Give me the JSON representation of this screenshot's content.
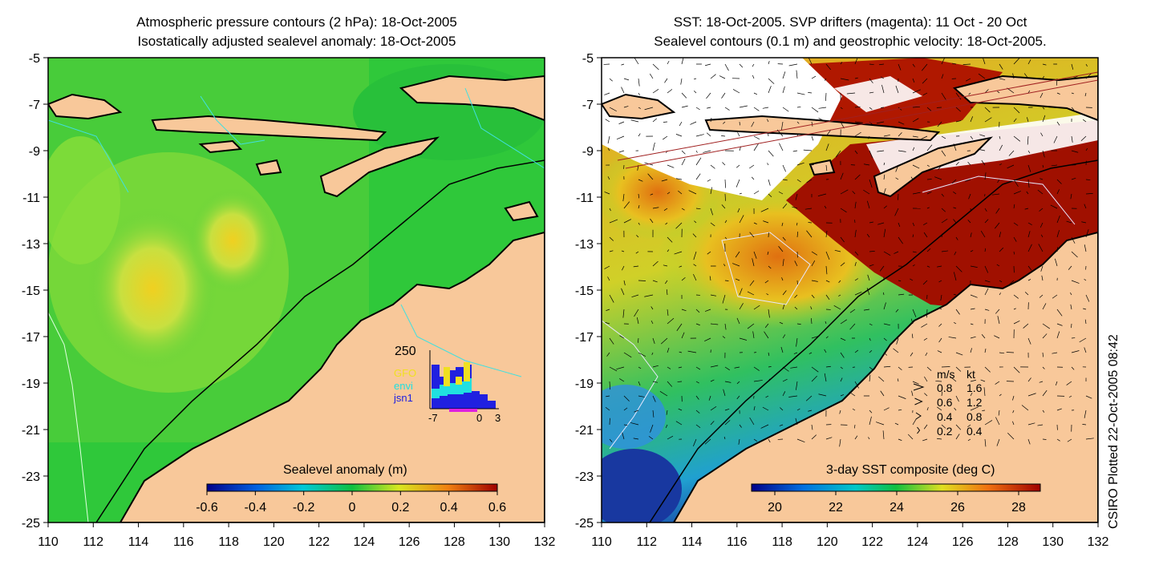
{
  "left_panel": {
    "title_line1": "Atmospheric pressure contours (2 hPa): 18-Oct-2005",
    "title_line2": "Isostatically adjusted sealevel anomaly: 18-Oct-2005",
    "colorbar_label": "Sealevel anomaly (m)",
    "colorbar_ticks": [
      "-0.6",
      "-0.4",
      "-0.2",
      "0",
      "0.2",
      "0.4",
      "0.6"
    ],
    "histogram": {
      "ymax_label": "250",
      "x_tick_labels": [
        "-7",
        "0",
        "3"
      ],
      "legend": [
        {
          "label": "GFO",
          "color": "#f0e020"
        },
        {
          "label": "envi",
          "color": "#20e0e0"
        },
        {
          "label": "jsn1",
          "color": "#2020e0"
        }
      ]
    }
  },
  "right_panel": {
    "title_line1": "SST: 18-Oct-2005. SVP drifters (magenta): 11 Oct - 20 Oct",
    "title_line2": "Sealevel contours (0.1 m) and geostrophic velocity: 18-Oct-2005.",
    "colorbar_label": "3-day SST composite (deg C)",
    "colorbar_ticks": [
      "20",
      "22",
      "24",
      "26",
      "28"
    ],
    "velocity_legend": {
      "header_ms": "m/s",
      "header_kt": "kt",
      "rows": [
        {
          "ms": "0.8",
          "kt": "1.6"
        },
        {
          "ms": "0.6",
          "kt": "1.2"
        },
        {
          "ms": "0.4",
          "kt": "0.8"
        },
        {
          "ms": "0.2",
          "kt": "0.4"
        }
      ]
    }
  },
  "axes": {
    "x_tick_labels": [
      "110",
      "112",
      "114",
      "116",
      "118",
      "120",
      "122",
      "124",
      "126",
      "128",
      "130",
      "132"
    ],
    "y_tick_labels": [
      "-5",
      "-7",
      "-9",
      "-11",
      "-13",
      "-15",
      "-17",
      "-19",
      "-21",
      "-23",
      "-25"
    ]
  },
  "footer_note": "CSIRO Plotted 22-Oct-2005 08:42",
  "colors": {
    "land": "#f8c89a",
    "sea_green": "#2fc83a",
    "sea_light": "#9adf40",
    "warm_sst": "#a01000",
    "cool_sst": "#2050c8"
  }
}
